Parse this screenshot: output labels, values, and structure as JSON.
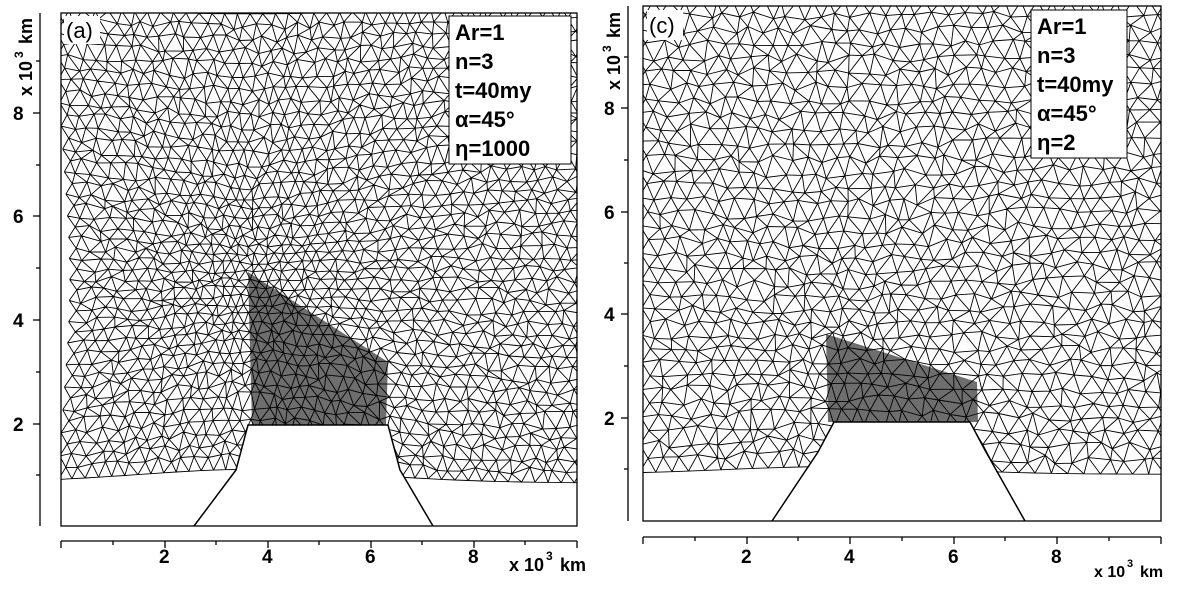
{
  "figure": {
    "panels": [
      {
        "id": "a",
        "tag": "(a)",
        "params": [
          "Ar=1",
          "n=3",
          "t=40my",
          "α=45°",
          "η=1000"
        ],
        "x_ticks": [
          "2",
          "4",
          "6",
          "8"
        ],
        "y_ticks": [
          "2",
          "4",
          "6",
          "8"
        ],
        "x_unit": "x 10",
        "x_unit_exp": "3",
        "x_unit_tail": "km",
        "y_unit": "x 10",
        "y_unit_exp": "3",
        "y_unit_tail": "km",
        "deformation": "strong"
      },
      {
        "id": "c",
        "tag": "(c)",
        "params": [
          "Ar=1",
          "n=3",
          "t=40my",
          "α=45°",
          "η=2"
        ],
        "x_ticks": [
          "2",
          "4",
          "6",
          "8"
        ],
        "y_ticks": [
          "2",
          "4",
          "6",
          "8"
        ],
        "x_unit": "x 10",
        "x_unit_exp": "3",
        "x_unit_tail": "km",
        "y_unit": "x 10",
        "y_unit_exp": "3",
        "y_unit_tail": "km",
        "deformation": "weak"
      }
    ],
    "colors": {
      "mesh": "#000000",
      "indenter_fill": "#6e6e6e",
      "background": "#ffffff"
    }
  }
}
